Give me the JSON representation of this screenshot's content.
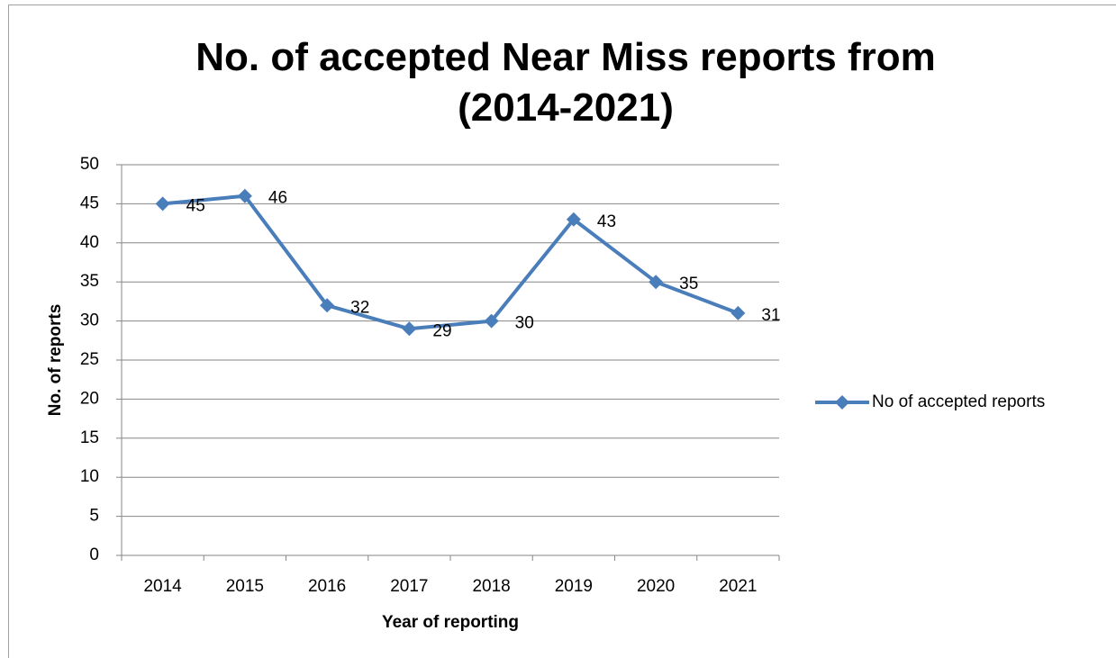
{
  "chart_data": {
    "type": "line",
    "title": "No. of accepted Near Miss reports from (2014-2021)",
    "x_label": "Year of reporting",
    "y_label": "No. of reports",
    "categories": [
      "2014",
      "2015",
      "2016",
      "2017",
      "2018",
      "2019",
      "2020",
      "2021"
    ],
    "series": [
      {
        "name": "No of accepted reports",
        "color": "#4a7ebb",
        "values": [
          45,
          46,
          32,
          29,
          30,
          43,
          35,
          31
        ]
      }
    ],
    "ylim": [
      0,
      50
    ],
    "yticks": [
      0,
      5,
      10,
      15,
      20,
      25,
      30,
      35,
      40,
      45,
      50
    ],
    "grid": true,
    "legend": "right",
    "data_labels": true
  }
}
